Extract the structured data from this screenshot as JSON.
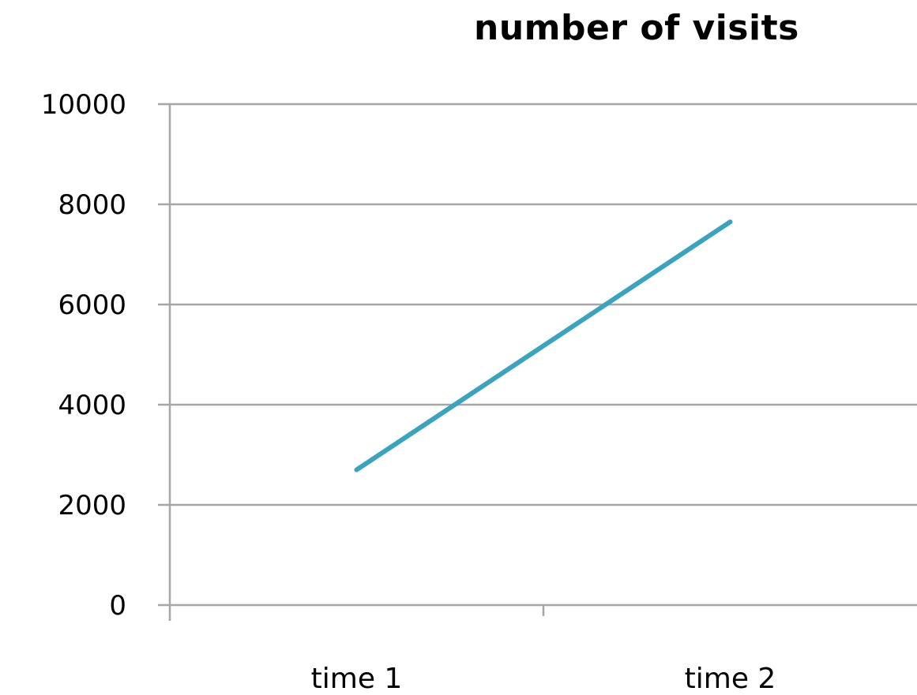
{
  "chart_data": {
    "type": "line",
    "title": "number of visits",
    "xlabel": "",
    "ylabel": "",
    "categories": [
      "time 1",
      "time 2"
    ],
    "series": [
      {
        "values": [
          2700,
          7650
        ],
        "color": "#3aa3bf"
      }
    ],
    "ylim": [
      0,
      10000
    ],
    "yticks": [
      0,
      2000,
      4000,
      6000,
      8000,
      10000
    ],
    "ytick_labels": [
      "0",
      "2000",
      "4000",
      "6000",
      "8000",
      "10000"
    ],
    "grid": true,
    "legend": "none"
  }
}
